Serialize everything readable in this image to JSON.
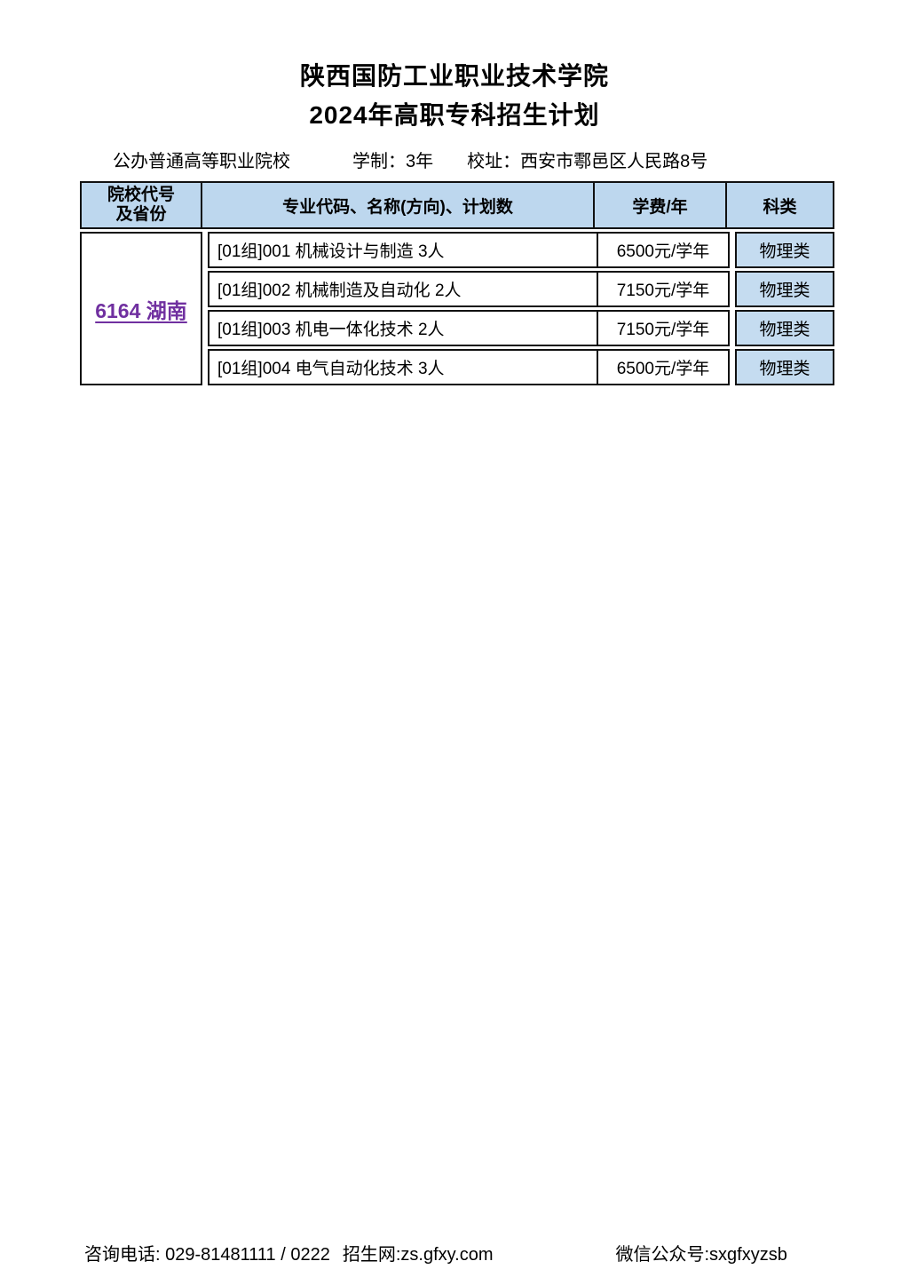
{
  "page": {
    "title_line1": "陕西国防工业职业技术学院",
    "title_line2": "2024年高职专科招生计划"
  },
  "info": {
    "school_type": "公办普通高等职业院校",
    "duration": "学制：3年",
    "address": "校址：西安市鄠邑区人民路8号"
  },
  "table": {
    "headers": {
      "col1_line1": "院校代号",
      "col1_line2": "及省份",
      "col2": "专业代码、名称(方向)、计划数",
      "col3": "学费/年",
      "col4": "科类"
    },
    "school_code": "6164 湖南",
    "rows": [
      {
        "major": "[01组]001 机械设计与制造 3人",
        "fee": "6500元/学年",
        "category": "物理类"
      },
      {
        "major": "[01组]002 机械制造及自动化 2人",
        "fee": "7150元/学年",
        "category": "物理类"
      },
      {
        "major": "[01组]003 机电一体化技术 2人",
        "fee": "7150元/学年",
        "category": "物理类"
      },
      {
        "major": "[01组]004 电气自动化技术 3人",
        "fee": "6500元/学年",
        "category": "物理类"
      }
    ]
  },
  "footer": {
    "phone": "咨询电话: 029-81481111 / 0222",
    "website": "招生网:zs.gfxy.com",
    "wechat": "微信公众号:sxgfxyzsb"
  },
  "colors": {
    "header_blue": "#bdd7ee",
    "category_cell_blue": "#c5dcf0",
    "link_purple": "#7030a0",
    "border_black": "#111111"
  }
}
